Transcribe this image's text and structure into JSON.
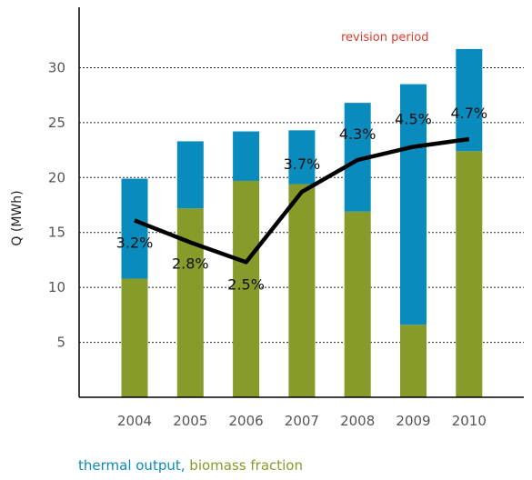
{
  "chart_data": {
    "type": "bar",
    "stacked": true,
    "categories": [
      "2004",
      "2005",
      "2006",
      "2007",
      "2008",
      "2009",
      "2010"
    ],
    "series": [
      {
        "name": "biomass fraction",
        "color": "#869b2a",
        "values": [
          10.8,
          17.2,
          19.7,
          19.4,
          16.9,
          6.6,
          22.4
        ]
      },
      {
        "name": "thermal output",
        "color": "#0a8bbd",
        "values": [
          9.1,
          6.1,
          4.5,
          4.9,
          9.9,
          21.9,
          9.3
        ]
      }
    ],
    "line": {
      "color": "#000000",
      "values": [
        16.1,
        14.1,
        12.3,
        18.7,
        21.6,
        22.8,
        23.5
      ],
      "labels": [
        "3.2%",
        "2.8%",
        "2.5%",
        "3.7%",
        "4.3%",
        "4.5%",
        "4.7%"
      ]
    },
    "yticks": [
      5,
      10,
      15,
      20,
      25,
      30
    ],
    "ylim": [
      0,
      35.5
    ],
    "ylabel": "Q (MWh)",
    "xlabel": "",
    "grid": true,
    "annotation": "revision period",
    "annotation_color": "#e23a2e",
    "legend": {
      "placement": "bottom-left",
      "thermal_label": "thermal output,",
      "biomass_label": "biomass fraction"
    }
  }
}
